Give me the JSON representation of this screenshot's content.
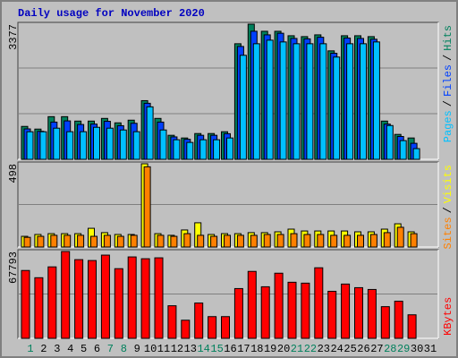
{
  "chart_data": [
    {
      "type": "bar",
      "title": "Daily usage for November 2020",
      "categories": [
        "1",
        "2",
        "3",
        "4",
        "5",
        "6",
        "7",
        "8",
        "9",
        "10",
        "11",
        "12",
        "13",
        "14",
        "15",
        "16",
        "17",
        "18",
        "19",
        "20",
        "21",
        "22",
        "23",
        "24",
        "25",
        "26",
        "27",
        "28",
        "29",
        "30",
        "31"
      ],
      "category_colors": [
        "#00805c",
        "#000000",
        "#000000",
        "#000000",
        "#000000",
        "#000000",
        "#00805c",
        "#00805c",
        "#000000",
        "#000000",
        "#000000",
        "#000000",
        "#000000",
        "#00805c",
        "#00805c",
        "#000000",
        "#000000",
        "#000000",
        "#000000",
        "#000000",
        "#00805c",
        "#00805c",
        "#000000",
        "#000000",
        "#000000",
        "#000000",
        "#000000",
        "#00805c",
        "#00805c",
        "#000000",
        "#000000"
      ],
      "legend_separator": "/",
      "ylim": [
        0,
        3377
      ],
      "yticks": [
        3377
      ],
      "series": [
        {
          "name": "Pages",
          "color": "#00c0ff",
          "values": [
            689,
            689,
            778,
            690,
            690,
            800,
            778,
            733,
            690,
            1311,
            733,
            489,
            422,
            489,
            489,
            533,
            2599,
            2888,
            2977,
            2933,
            2888,
            2888,
            2888,
            2555,
            2888,
            2888,
            2933,
            844,
            467,
            267,
            null
          ]
        },
        {
          "name": "Files",
          "color": "#0040ff",
          "values": [
            760,
            700,
            930,
            960,
            870,
            880,
            950,
            840,
            900,
            1400,
            930,
            560,
            500,
            600,
            600,
            640,
            2820,
            3200,
            3110,
            3150,
            3020,
            3010,
            3050,
            2650,
            3030,
            3020,
            3000,
            880,
            570,
            400,
            null
          ]
        },
        {
          "name": "Hits",
          "color": "#00805c",
          "values": [
            822,
            755,
            1066,
            1066,
            955,
            955,
            1022,
            911,
            978,
            1466,
            1022,
            600,
            533,
            644,
            644,
            689,
            2888,
            3377,
            3199,
            3199,
            3088,
            3066,
            3110,
            2710,
            3088,
            3088,
            3066,
            955,
            622,
            533,
            null
          ]
        }
      ]
    },
    {
      "type": "bar",
      "ylim": [
        0,
        498
      ],
      "yticks": [
        498
      ],
      "series": [
        {
          "name": "Sites",
          "color": "#ff8000",
          "values": [
            58,
            64,
            70,
            70,
            70,
            64,
            70,
            64,
            70,
            480,
            70,
            64,
            80,
            70,
            64,
            70,
            70,
            70,
            75,
            75,
            80,
            75,
            75,
            70,
            70,
            70,
            75,
            86,
            118,
            80,
            null
          ]
        },
        {
          "name": "Visits",
          "color": "#ffff00",
          "values": [
            64,
            75,
            80,
            80,
            80,
            112,
            86,
            75,
            75,
            498,
            80,
            70,
            102,
            145,
            75,
            80,
            80,
            86,
            86,
            91,
            107,
            96,
            96,
            96,
            96,
            91,
            91,
            107,
            139,
            91,
            null
          ]
        }
      ]
    },
    {
      "type": "bar",
      "ylim": [
        0,
        67793
      ],
      "yticks": [
        67793
      ],
      "series": [
        {
          "name": "KBytes",
          "color": "#ff0000",
          "values": [
            52963,
            47314,
            55788,
            67793,
            61438,
            60732,
            64969,
            54375,
            63556,
            62144,
            62850,
            25423,
            14124,
            27541,
            16948,
            16948,
            38840,
            52257,
            40252,
            50844,
            43782,
            43075,
            55081,
            36721,
            42369,
            39545,
            38133,
            24717,
            28954,
            18360,
            null
          ]
        }
      ]
    }
  ]
}
